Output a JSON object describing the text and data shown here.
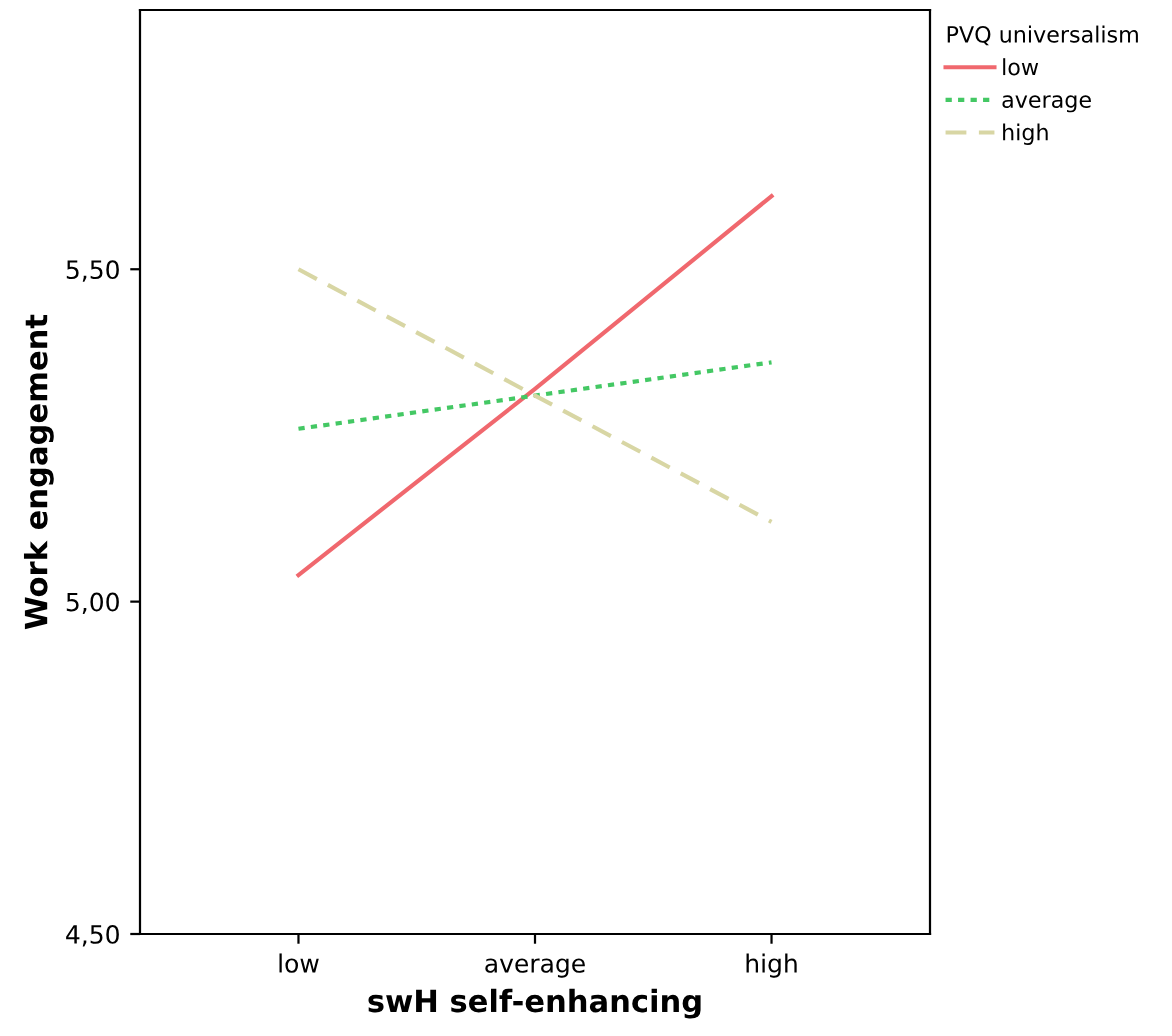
{
  "chart_data": {
    "type": "line",
    "xlabel": "swH self-enhancing",
    "ylabel": "Work engagement",
    "legend_title": "PVQ universalism",
    "categories": [
      "low",
      "average",
      "high"
    ],
    "series": [
      {
        "name": "low",
        "color": "#f0686e",
        "values": [
          5.04,
          5.32,
          5.61
        ],
        "line_style": "solid"
      },
      {
        "name": "average",
        "color": "#44c864",
        "values": [
          5.26,
          5.31,
          5.36
        ],
        "line_style": "dotted"
      },
      {
        "name": "high",
        "color": "#d8d6a4",
        "values": [
          5.5,
          5.31,
          5.12
        ],
        "line_style": "dashed"
      }
    ],
    "ylim": [
      4.5,
      5.89
    ],
    "yticks": [
      {
        "value": 4.5,
        "label": "4,50"
      },
      {
        "value": 5.0,
        "label": "5,00"
      },
      {
        "value": 5.5,
        "label": "5,50"
      }
    ],
    "grid": false,
    "legend": "top right",
    "marker": "none"
  }
}
